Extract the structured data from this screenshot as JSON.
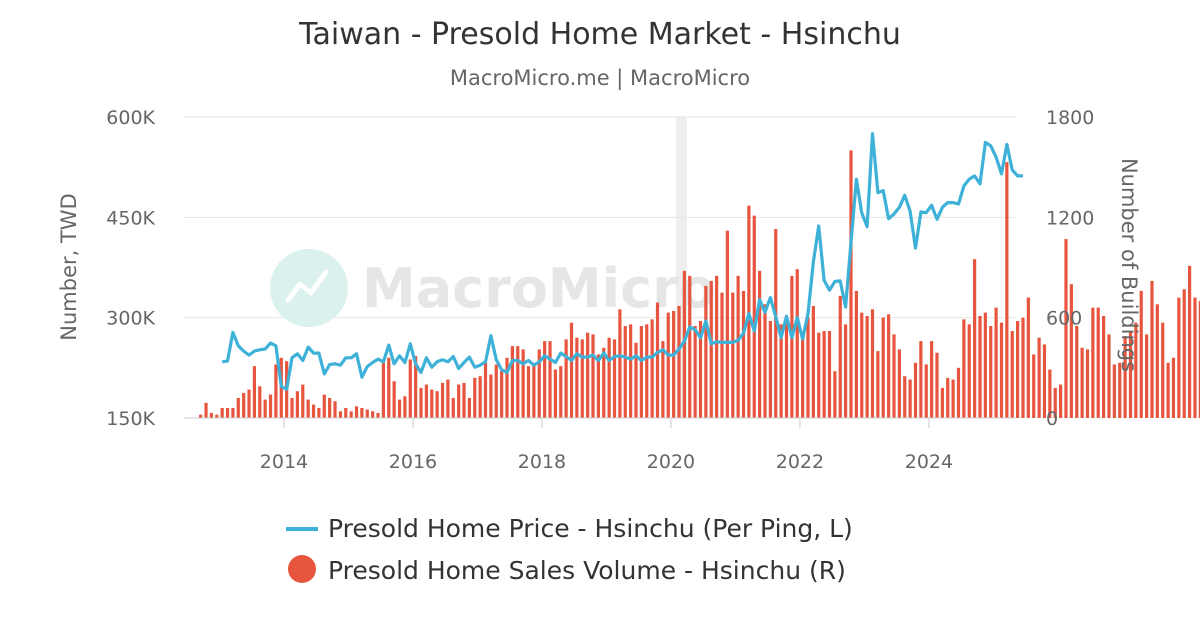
{
  "chart_data": {
    "type": "bar+line",
    "title": "Taiwan - Presold Home Market - Hsinchu",
    "subtitle": "MacroMicro.me | MacroMicro",
    "watermark": "MacroMicro",
    "ylabel_left": "Number, TWD",
    "ylabel_right": "Number of Buildings",
    "ylim_left": [
      150000,
      600000
    ],
    "ylim_right": [
      0,
      1800
    ],
    "yticks_left": [
      {
        "value": 150000,
        "label": "150K"
      },
      {
        "value": 300000,
        "label": "300K"
      },
      {
        "value": 450000,
        "label": "450K"
      },
      {
        "value": 600000,
        "label": "600K"
      }
    ],
    "yticks_right": [
      {
        "value": 0,
        "label": "0"
      },
      {
        "value": 600,
        "label": "600"
      },
      {
        "value": 1200,
        "label": "1200"
      },
      {
        "value": 1800,
        "label": "1800"
      }
    ],
    "xlim": [
      2012.45,
      2025.35
    ],
    "xticks": [
      {
        "value": 2014,
        "label": "2014"
      },
      {
        "value": 2016,
        "label": "2016"
      },
      {
        "value": 2018,
        "label": "2018"
      },
      {
        "value": 2020,
        "label": "2020"
      },
      {
        "value": 2022,
        "label": "2022"
      },
      {
        "value": 2024,
        "label": "2024"
      }
    ],
    "recession_band": [
      2020.08,
      2020.25
    ],
    "grid": true,
    "legend_position": "bottom",
    "colors": {
      "price": "#3eb1d8",
      "volume": "#e8553e"
    },
    "series": [
      {
        "name": "Presold Home Price - Hsinchu (Per Ping, L)",
        "kind": "line",
        "axis": "left",
        "start": "2013-01",
        "values": [
          234000,
          235000,
          278000,
          258000,
          250000,
          244000,
          250000,
          252000,
          253000,
          262000,
          258000,
          197000,
          193000,
          240000,
          246000,
          236000,
          256000,
          247000,
          247000,
          216000,
          230000,
          231000,
          229000,
          240000,
          240000,
          246000,
          211000,
          227000,
          233000,
          238000,
          234000,
          259000,
          231000,
          243000,
          233000,
          261000,
          231000,
          218000,
          240000,
          226000,
          234000,
          237000,
          234000,
          242000,
          224000,
          233000,
          241000,
          226000,
          229000,
          234000,
          273000,
          237000,
          222000,
          218000,
          236000,
          236000,
          231000,
          236000,
          229000,
          234000,
          243000,
          238000,
          233000,
          247000,
          242000,
          236000,
          246000,
          241000,
          241000,
          244000,
          236000,
          247000,
          236000,
          242000,
          243000,
          241000,
          238000,
          243000,
          236000,
          241000,
          241000,
          248000,
          252000,
          244000,
          244000,
          253000,
          265000,
          286000,
          282000,
          270000,
          295000,
          261000,
          264000,
          263000,
          263000,
          263000,
          266000,
          277000,
          306000,
          280000,
          327000,
          308000,
          330000,
          301000,
          270000,
          302000,
          270000,
          300000,
          268000,
          306000,
          384000,
          437000,
          356000,
          341000,
          354000,
          355000,
          316000,
          413000,
          507000,
          457000,
          436000,
          575000,
          487000,
          490000,
          448000,
          455000,
          465000,
          483000,
          459000,
          404000,
          458000,
          457000,
          468000,
          447000,
          465000,
          472000,
          472000,
          470000,
          497000,
          507000,
          512000,
          500000,
          562000,
          557000,
          540000,
          515000,
          559000,
          521000,
          512000,
          512000
        ]
      },
      {
        "name": "Presold Home Sales Volume - Hsinchu (R)",
        "kind": "bar",
        "axis": "right",
        "start": "2012-09",
        "values": [
          20,
          90,
          30,
          20,
          60,
          60,
          60,
          120,
          150,
          170,
          310,
          190,
          110,
          140,
          320,
          360,
          340,
          120,
          160,
          200,
          110,
          80,
          60,
          140,
          120,
          100,
          40,
          60,
          40,
          70,
          60,
          50,
          40,
          30,
          330,
          360,
          220,
          110,
          130,
          350,
          370,
          180,
          200,
          170,
          160,
          210,
          230,
          120,
          200,
          210,
          120,
          240,
          250,
          330,
          260,
          320,
          280,
          360,
          430,
          430,
          410,
          310,
          330,
          410,
          460,
          460,
          290,
          310,
          470,
          570,
          480,
          470,
          510,
          500,
          380,
          420,
          480,
          470,
          650,
          550,
          560,
          450,
          550,
          560,
          590,
          690,
          460,
          630,
          640,
          670,
          880,
          850,
          550,
          580,
          790,
          820,
          850,
          750,
          1120,
          750,
          850,
          760,
          1270,
          1210,
          880,
          680,
          580,
          1130,
          560,
          600,
          850,
          890,
          510,
          600,
          670,
          510,
          520,
          520,
          280,
          730,
          560,
          1600,
          760,
          630,
          610,
          650,
          400,
          600,
          620,
          500,
          410,
          250,
          230,
          330,
          460,
          320,
          460,
          390,
          180,
          240,
          230,
          300,
          590,
          560,
          950,
          610,
          630,
          550,
          660,
          570,
          1530,
          520,
          580,
          600,
          720,
          380,
          480,
          440,
          290,
          180,
          200,
          1070,
          800,
          550,
          420,
          410,
          660,
          660,
          610,
          500,
          320,
          330,
          490,
          520,
          570,
          760,
          500,
          820,
          680,
          570,
          330,
          360,
          720,
          770,
          910,
          720,
          700,
          690,
          450,
          570,
          1210,
          1110,
          1050,
          1030,
          900,
          930,
          1040,
          250,
          750,
          980,
          900,
          960,
          1070,
          950,
          830,
          200,
          230,
          450,
          410,
          490,
          350,
          160,
          240,
          300,
          230,
          140,
          200,
          300,
          290,
          200
        ]
      }
    ],
    "legend": [
      {
        "label": "Presold Home Price - Hsinchu (Per Ping, L)",
        "symbol": "line"
      },
      {
        "label": "Presold Home Sales Volume - Hsinchu (R)",
        "symbol": "circle"
      }
    ]
  }
}
